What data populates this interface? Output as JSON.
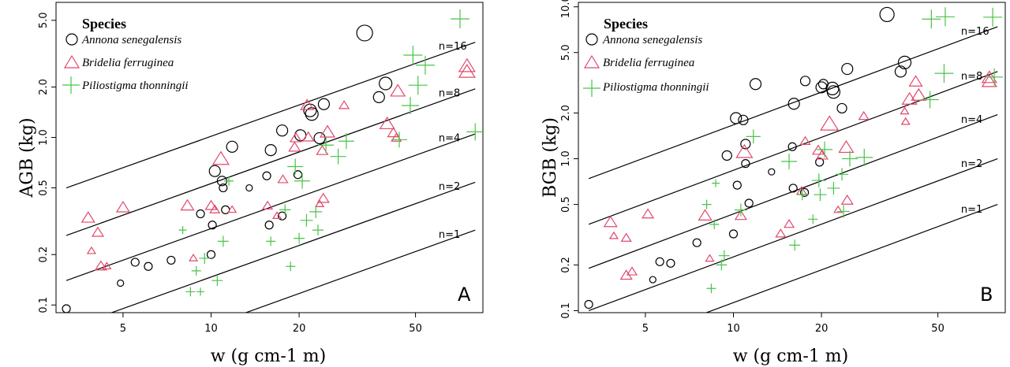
{
  "colors": {
    "Annona senegalensis": "#000000",
    "Bridelia ferruginea": "#e2486b",
    "Piliostigma thonningii": "#48c448"
  },
  "legend": {
    "title": "Species",
    "items": [
      {
        "name": "Annona senegalensis",
        "marker": "circle"
      },
      {
        "name": "Bridelia ferruginea",
        "marker": "triangle"
      },
      {
        "name": "Piliostigma thonningii",
        "marker": "plus"
      }
    ]
  },
  "chart_data": [
    {
      "type": "scatter",
      "panel_label": "A",
      "ylabel": "AGB (kg)",
      "xlabel": "w (g cm-1 m)",
      "x_scale": "log",
      "y_scale": "log",
      "xlim": [
        2.95,
        85
      ],
      "ylim": [
        0.09,
        6.4
      ],
      "xticks": [
        5,
        10,
        20,
        50
      ],
      "yticks": [
        0.1,
        0.2,
        0.5,
        1.0,
        2.0,
        5.0
      ],
      "ytick_labels": [
        "0.1",
        "0.2",
        "0.5",
        "1.0",
        "2.0",
        "5.0"
      ],
      "reference_lines": [
        {
          "label": "n=16",
          "points": [
            [
              3.2,
              0.5
            ],
            [
              80,
              3.7
            ]
          ]
        },
        {
          "label": "n=8",
          "points": [
            [
              3.2,
              0.26
            ],
            [
              80,
              1.95
            ]
          ]
        },
        {
          "label": "n=4",
          "points": [
            [
              3.2,
              0.14
            ],
            [
              80,
              1.05
            ]
          ]
        },
        {
          "label": "n=2",
          "points": [
            [
              3.2,
              0.072
            ],
            [
              80,
              0.54
            ]
          ]
        },
        {
          "label": "n=1",
          "points": [
            [
              3.2,
              0.037
            ],
            [
              80,
              0.28
            ]
          ]
        }
      ],
      "series": [
        {
          "name": "Annona senegalensis",
          "marker": "circle",
          "points": [
            [
              3.2,
              0.095,
              5
            ],
            [
              5.5,
              0.18,
              5
            ],
            [
              6.1,
              0.17,
              5
            ],
            [
              7.3,
              0.185,
              5
            ],
            [
              4.9,
              0.135,
              4
            ],
            [
              10.0,
              0.2,
              5
            ],
            [
              9.2,
              0.35,
              5
            ],
            [
              10.1,
              0.3,
              5
            ],
            [
              11.2,
              0.37,
              5
            ],
            [
              10.9,
              0.55,
              6
            ],
            [
              11.0,
              0.5,
              5
            ],
            [
              10.3,
              0.63,
              7
            ],
            [
              11.8,
              0.88,
              7
            ],
            [
              13.5,
              0.5,
              4
            ],
            [
              15.8,
              0.3,
              5
            ],
            [
              15.5,
              0.59,
              5
            ],
            [
              16.0,
              0.84,
              7
            ],
            [
              17.5,
              1.1,
              7
            ],
            [
              17.5,
              0.34,
              5
            ],
            [
              19.8,
              0.6,
              5
            ],
            [
              20.2,
              1.03,
              7
            ],
            [
              21.8,
              1.45,
              8
            ],
            [
              22.1,
              1.38,
              8
            ],
            [
              23.5,
              0.99,
              7
            ],
            [
              24.3,
              1.58,
              7
            ],
            [
              33.5,
              4.2,
              10
            ],
            [
              37.5,
              1.74,
              7
            ],
            [
              39.5,
              2.1,
              8
            ]
          ]
        },
        {
          "name": "Bridelia ferruginea",
          "marker": "triangle",
          "points": [
            [
              3.8,
              0.33,
              8
            ],
            [
              3.9,
              0.21,
              5
            ],
            [
              4.1,
              0.27,
              7
            ],
            [
              4.2,
              0.17,
              7
            ],
            [
              4.4,
              0.17,
              5
            ],
            [
              5.0,
              0.38,
              8
            ],
            [
              8.3,
              0.39,
              8
            ],
            [
              8.7,
              0.19,
              5
            ],
            [
              10.0,
              0.39,
              7
            ],
            [
              10.3,
              0.37,
              6
            ],
            [
              10.8,
              0.74,
              10
            ],
            [
              11.8,
              0.37,
              5
            ],
            [
              16.8,
              0.34,
              5
            ],
            [
              15.6,
              0.39,
              6
            ],
            [
              17.6,
              0.56,
              6
            ],
            [
              19.5,
              0.99,
              7
            ],
            [
              19.3,
              0.87,
              7
            ],
            [
              21.5,
              1.0,
              7
            ],
            [
              21.3,
              1.55,
              8
            ],
            [
              23.5,
              0.4,
              5
            ],
            [
              24.0,
              0.83,
              7
            ],
            [
              24.2,
              0.43,
              7
            ],
            [
              25.0,
              1.07,
              9
            ],
            [
              28.5,
              1.55,
              6
            ],
            [
              40.0,
              1.2,
              9
            ],
            [
              42.0,
              1.06,
              7
            ],
            [
              43.0,
              0.99,
              6
            ],
            [
              43.5,
              1.88,
              9
            ],
            [
              75.0,
              2.65,
              10
            ],
            [
              75.0,
              2.45,
              10
            ]
          ]
        },
        {
          "name": "Piliostigma thonningii",
          "marker": "plus",
          "points": [
            [
              8.0,
              0.28,
              5
            ],
            [
              8.5,
              0.12,
              6
            ],
            [
              8.9,
              0.16,
              6
            ],
            [
              9.2,
              0.12,
              5
            ],
            [
              9.5,
              0.19,
              7
            ],
            [
              10.5,
              0.14,
              7
            ],
            [
              11.0,
              0.24,
              7
            ],
            [
              11.5,
              0.55,
              6
            ],
            [
              16.0,
              0.24,
              6
            ],
            [
              17.9,
              0.37,
              7
            ],
            [
              18.7,
              0.17,
              6
            ],
            [
              19.4,
              0.67,
              10
            ],
            [
              20.0,
              0.25,
              7
            ],
            [
              20.5,
              0.55,
              10
            ],
            [
              21.2,
              0.32,
              8
            ],
            [
              22.8,
              0.36,
              8
            ],
            [
              23.2,
              0.28,
              7
            ],
            [
              24.7,
              0.9,
              10
            ],
            [
              27.2,
              0.77,
              10
            ],
            [
              29.0,
              0.95,
              10
            ],
            [
              44.0,
              0.97,
              10
            ],
            [
              48.0,
              1.55,
              11
            ],
            [
              49.0,
              3.1,
              12
            ],
            [
              51.0,
              2.05,
              12
            ],
            [
              54.0,
              2.7,
              12
            ],
            [
              71.0,
              5.1,
              12
            ],
            [
              80.0,
              1.08,
              11
            ]
          ]
        }
      ]
    },
    {
      "type": "scatter",
      "panel_label": "B",
      "ylabel": "BGB (kg)",
      "xlabel": "w (g cm-1 m)",
      "x_scale": "log",
      "y_scale": "log",
      "xlim": [
        2.95,
        85
      ],
      "ylim": [
        0.097,
        10.7
      ],
      "xticks": [
        5,
        10,
        20,
        50
      ],
      "yticks": [
        0.1,
        0.2,
        0.5,
        1.0,
        2.0,
        5.0,
        10.0
      ],
      "ytick_labels": [
        "0.1",
        "0.2",
        "0.5",
        "1.0",
        "2.0",
        "5.0",
        "10.0"
      ],
      "reference_lines": [
        {
          "label": "n=16",
          "points": [
            [
              3.2,
              0.74
            ],
            [
              80,
              7.4
            ]
          ]
        },
        {
          "label": "n=8",
          "points": [
            [
              3.2,
              0.37
            ],
            [
              80,
              3.75
            ]
          ]
        },
        {
          "label": "n=4",
          "points": [
            [
              3.2,
              0.19
            ],
            [
              80,
              1.95
            ]
          ]
        },
        {
          "label": "n=2",
          "points": [
            [
              3.2,
              0.1
            ],
            [
              80,
              1.0
            ]
          ]
        },
        {
          "label": "n=1",
          "points": [
            [
              3.2,
              0.05
            ],
            [
              80,
              0.5
            ]
          ]
        }
      ],
      "series": [
        {
          "name": "Annona senegalensis",
          "marker": "circle",
          "points": [
            [
              3.2,
              0.11,
              5
            ],
            [
              5.3,
              0.16,
              4
            ],
            [
              5.6,
              0.21,
              5
            ],
            [
              6.1,
              0.205,
              5
            ],
            [
              7.5,
              0.28,
              5
            ],
            [
              9.5,
              1.05,
              6
            ],
            [
              10.0,
              0.32,
              5
            ],
            [
              10.3,
              0.67,
              5
            ],
            [
              10.2,
              1.85,
              7
            ],
            [
              10.8,
              1.8,
              6
            ],
            [
              11.0,
              1.25,
              6
            ],
            [
              11.0,
              0.93,
              5
            ],
            [
              11.3,
              0.51,
              5
            ],
            [
              11.9,
              3.1,
              7
            ],
            [
              13.5,
              0.82,
              4
            ],
            [
              15.9,
              1.2,
              5
            ],
            [
              16.0,
              0.64,
              5
            ],
            [
              16.1,
              2.3,
              7
            ],
            [
              17.5,
              0.6,
              5
            ],
            [
              17.6,
              3.25,
              6
            ],
            [
              19.7,
              0.95,
              5
            ],
            [
              20.0,
              2.95,
              7
            ],
            [
              20.3,
              3.1,
              6
            ],
            [
              21.8,
              2.9,
              8
            ],
            [
              22.0,
              2.75,
              8
            ],
            [
              23.5,
              2.15,
              6
            ],
            [
              24.5,
              3.9,
              7
            ],
            [
              33.5,
              8.9,
              9
            ],
            [
              37.3,
              3.75,
              7
            ],
            [
              38.5,
              4.3,
              8
            ]
          ]
        },
        {
          "name": "Bridelia ferruginea",
          "marker": "triangle",
          "points": [
            [
              3.8,
              0.38,
              8
            ],
            [
              3.9,
              0.31,
              5
            ],
            [
              4.3,
              0.3,
              6
            ],
            [
              4.3,
              0.17,
              7
            ],
            [
              4.5,
              0.18,
              6
            ],
            [
              5.1,
              0.43,
              7
            ],
            [
              8.0,
              0.42,
              8
            ],
            [
              8.3,
              0.22,
              5
            ],
            [
              10.6,
              0.42,
              7
            ],
            [
              10.9,
              1.1,
              10
            ],
            [
              14.5,
              0.32,
              6
            ],
            [
              15.5,
              0.37,
              6
            ],
            [
              17.1,
              0.61,
              6
            ],
            [
              17.6,
              1.3,
              6
            ],
            [
              19.5,
              1.13,
              7
            ],
            [
              20.1,
              1.05,
              7
            ],
            [
              21.3,
              1.68,
              11
            ],
            [
              22.8,
              0.46,
              5
            ],
            [
              24.3,
              1.18,
              9
            ],
            [
              24.5,
              0.53,
              7
            ],
            [
              27.9,
              1.9,
              6
            ],
            [
              38.5,
              2.05,
              5
            ],
            [
              38.8,
              1.75,
              5
            ],
            [
              40.0,
              2.45,
              9
            ],
            [
              42.0,
              3.2,
              8
            ],
            [
              43.0,
              2.6,
              9
            ],
            [
              75.0,
              3.4,
              9
            ],
            [
              75.0,
              3.2,
              9
            ]
          ]
        },
        {
          "name": "Piliostigma thonningii",
          "marker": "plus",
          "points": [
            [
              8.1,
              0.5,
              6
            ],
            [
              8.4,
              0.14,
              6
            ],
            [
              8.6,
              0.37,
              6
            ],
            [
              8.7,
              0.69,
              5
            ],
            [
              9.1,
              0.2,
              7
            ],
            [
              9.3,
              0.23,
              7
            ],
            [
              10.6,
              0.46,
              8
            ],
            [
              11.7,
              1.4,
              9
            ],
            [
              15.5,
              0.96,
              10
            ],
            [
              16.2,
              0.27,
              7
            ],
            [
              17.2,
              0.58,
              7
            ],
            [
              18.7,
              0.4,
              6
            ],
            [
              19.6,
              0.72,
              9
            ],
            [
              19.8,
              0.58,
              8
            ],
            [
              20.5,
              1.15,
              10
            ],
            [
              22.0,
              0.64,
              8
            ],
            [
              23.5,
              0.79,
              8
            ],
            [
              23.8,
              0.45,
              8
            ],
            [
              25.0,
              1.0,
              10
            ],
            [
              28.0,
              1.02,
              11
            ],
            [
              47.0,
              2.45,
              11
            ],
            [
              47.5,
              8.3,
              12
            ],
            [
              52.5,
              3.65,
              12
            ],
            [
              53.0,
              8.6,
              12
            ],
            [
              78.0,
              3.45,
              11
            ],
            [
              77.0,
              8.55,
              12
            ]
          ]
        }
      ]
    }
  ]
}
